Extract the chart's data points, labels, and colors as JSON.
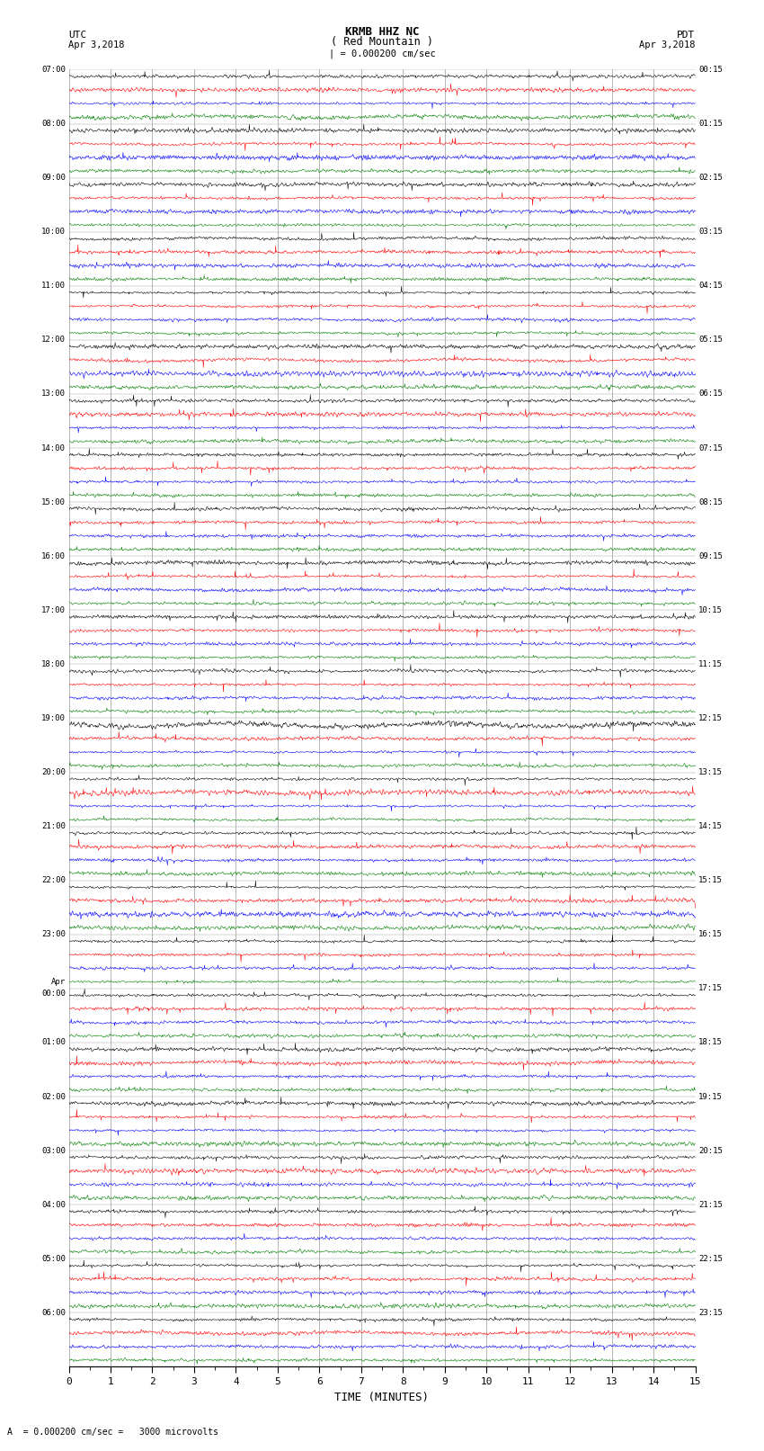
{
  "title_line1": "KRMB HHZ NC",
  "title_line2": "( Red Mountain )",
  "left_header": "UTC",
  "left_date": "Apr 3,2018",
  "right_header": "PDT",
  "right_date": "Apr 3,2018",
  "scale_text": "| = 0.000200 cm/sec",
  "xlabel": "TIME (MINUTES)",
  "bottom_scale": "A  = 0.000200 cm/sec =   3000 microvolts",
  "background_color": "#ffffff",
  "trace_colors": [
    "black",
    "red",
    "blue",
    "green"
  ],
  "num_row_groups": 24,
  "traces_per_group": 4,
  "minutes_per_row": 15,
  "fig_width": 8.5,
  "fig_height": 16.13,
  "left_time_labels": [
    "07:00",
    "08:00",
    "09:00",
    "10:00",
    "11:00",
    "12:00",
    "13:00",
    "14:00",
    "15:00",
    "16:00",
    "17:00",
    "18:00",
    "19:00",
    "20:00",
    "21:00",
    "22:00",
    "23:00",
    "Apr\n00:00",
    "01:00",
    "02:00",
    "03:00",
    "04:00",
    "05:00",
    "06:00"
  ],
  "right_time_labels": [
    "00:15",
    "01:15",
    "02:15",
    "03:15",
    "04:15",
    "05:15",
    "06:15",
    "07:15",
    "08:15",
    "09:15",
    "10:15",
    "11:15",
    "12:15",
    "13:15",
    "14:15",
    "15:15",
    "16:15",
    "17:15",
    "18:15",
    "19:15",
    "20:15",
    "21:15",
    "22:15",
    "23:15"
  ],
  "xtick_positions": [
    0,
    1,
    2,
    3,
    4,
    5,
    6,
    7,
    8,
    9,
    10,
    11,
    12,
    13,
    14,
    15
  ],
  "xtick_labels": [
    "0",
    "1",
    "2",
    "3",
    "4",
    "5",
    "6",
    "7",
    "8",
    "9",
    "10",
    "11",
    "12",
    "13",
    "14",
    "15"
  ],
  "grid_color": "#999999",
  "dpi": 100
}
